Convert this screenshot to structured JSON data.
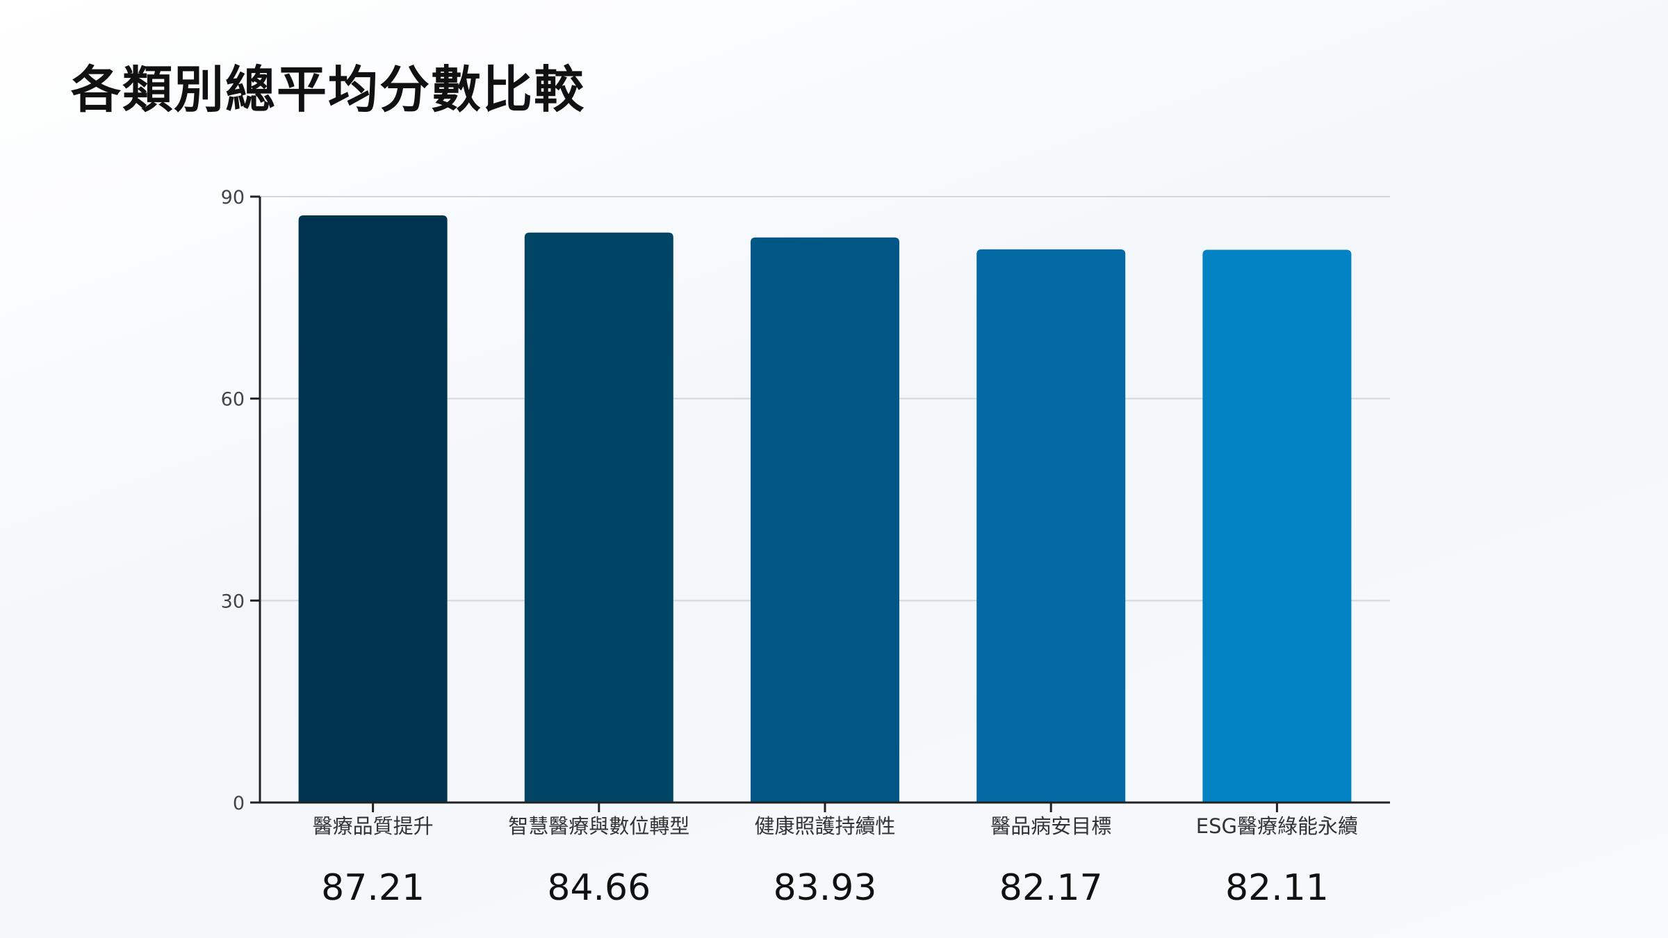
{
  "slide": {
    "title": "各類別總平均分數比較"
  },
  "chart_data": {
    "type": "bar",
    "title": "",
    "xlabel": "",
    "ylabel": "",
    "categories": [
      "醫療品質提升",
      "智慧醫療與數位轉型",
      "健康照護持續性",
      "醫品病安目標",
      "ESG醫療綠能永續"
    ],
    "values": [
      87.21,
      84.66,
      83.93,
      82.17,
      82.11
    ],
    "value_labels": [
      "87.21",
      "84.66",
      "83.93",
      "82.17",
      "82.11"
    ],
    "ylim": [
      0,
      90
    ],
    "yticks": [
      0,
      30,
      60,
      90
    ],
    "grid": true,
    "legend": "none",
    "bar_colors": [
      "#00334f",
      "#004466",
      "#005684",
      "#036aa3",
      "#0382c3"
    ],
    "axis_color": "#222222",
    "grid_color": "#d3d7dc"
  }
}
